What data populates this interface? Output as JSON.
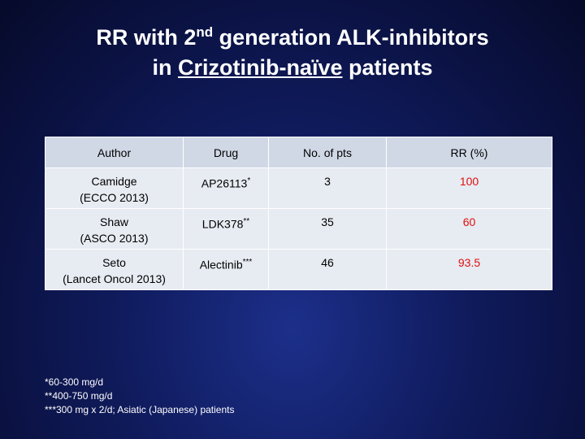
{
  "title": {
    "line1_start": "RR with 2",
    "line1_sup": "nd",
    "line1_end": " generation ALK-inhibitors",
    "line2_start": "in ",
    "line2_underlined": "Crizotinib-naïve",
    "line2_end": " patients"
  },
  "table": {
    "header": [
      "Author",
      "Drug",
      "No. of pts",
      "RR (%)"
    ],
    "rows": [
      {
        "author": [
          "Camidge",
          "(ECCO 2013)"
        ],
        "drug": "AP26113",
        "drug_note": "*",
        "pts": 3,
        "rr": 100
      },
      {
        "author": [
          "Shaw",
          "(ASCO 2013)"
        ],
        "drug": "LDK378",
        "drug_note": "**",
        "pts": 35,
        "rr": 60
      },
      {
        "author": [
          "Seto",
          "(Lancet Oncol 2013)"
        ],
        "drug": "Alectinib",
        "drug_note": "***",
        "pts": 46,
        "rr": 93.5
      }
    ]
  },
  "footnotes": [
    "*60-300 mg/d",
    "**400-750 mg/d",
    "***300 mg x 2/d; Asiatic (Japanese) patients"
  ]
}
